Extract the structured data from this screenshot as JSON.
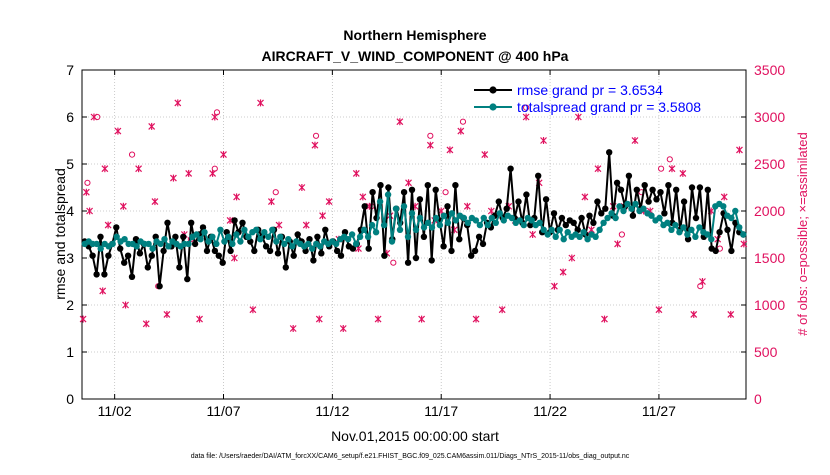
{
  "chart_data": {
    "type": "line",
    "title": "Northern Hemisphere",
    "subtitle": "AIRCRAFT_V_WIND_COMPONENT @ 400 hPa",
    "xlabel": "Nov.01,2015 00:00:00 start",
    "ylabel": "rmse and totalspread",
    "y2label": "# of obs: o=possible; ×=assimilated",
    "footer": "data file: /Users/raeder/DAI/ATM_forcXX/CAM6_setup/f.e21.FHIST_BGC.f09_025.CAM6assim.011/Diags_NTrS_2015-11/obs_diag_output.nc",
    "xlim": [
      0.5,
      31.0
    ],
    "ylim": [
      0,
      7
    ],
    "y2lim": [
      0,
      3500
    ],
    "x_ticks": [
      2,
      7,
      12,
      17,
      22,
      27
    ],
    "x_tick_labels": [
      "11/02",
      "11/07",
      "11/12",
      "11/17",
      "11/22",
      "11/27"
    ],
    "y_ticks": [
      0,
      1,
      2,
      3,
      4,
      5,
      6,
      7
    ],
    "y2_ticks": [
      0,
      500,
      1000,
      1500,
      2000,
      2500,
      3000,
      3500
    ],
    "grid": true,
    "legend_position": "top-right",
    "colors": {
      "rmse": "#000000",
      "spread": "#008080",
      "obs": "#e0115f"
    },
    "series": [
      {
        "name": "rmse grand pr = 3.6534",
        "axis": "left",
        "values": [
          3.35,
          3.25,
          3.05,
          2.65,
          3.45,
          2.65,
          3.05,
          3.3,
          3.65,
          3.2,
          2.9,
          3.05,
          2.6,
          3.4,
          3.1,
          3.3,
          2.8,
          3.05,
          3.45,
          2.4,
          3.15,
          3.75,
          3.25,
          3.45,
          2.8,
          3.45,
          2.55,
          3.75,
          3.3,
          3.5,
          3.65,
          3.15,
          3.45,
          3.15,
          3.05,
          2.9,
          3.55,
          3.15,
          3.8,
          3.55,
          3.75,
          3.45,
          3.35,
          3.15,
          3.6,
          3.45,
          3.25,
          3.15,
          3.6,
          3.1,
          3.45,
          2.8,
          3.35,
          3.05,
          3.5,
          3.35,
          3.15,
          3.4,
          2.95,
          3.45,
          3.1,
          3.6,
          3.25,
          3.35,
          3.15,
          3.05,
          3.55,
          3.25,
          3.2,
          3.3,
          3.6,
          4.1,
          3.2,
          4.4,
          3.85,
          4.55,
          3.05,
          4.5,
          3.4,
          4.05,
          3.75,
          4.4,
          2.9,
          4.45,
          3.0,
          4.25,
          3.45,
          4.55,
          2.95,
          4.45,
          3.8,
          3.25,
          4.1,
          3.15,
          4.55,
          3.4,
          3.85,
          3.7,
          3.05,
          3.15,
          3.45,
          3.3,
          3.75,
          3.65,
          3.9,
          4.2,
          3.85,
          4.05,
          4.9,
          3.85,
          4.2,
          3.75,
          4.35,
          3.7,
          3.85,
          4.75,
          3.55,
          4.25,
          3.55,
          3.95,
          3.6,
          3.85,
          3.7,
          3.8,
          3.75,
          3.6,
          3.85,
          3.5,
          3.9,
          3.75,
          4.2,
          3.95,
          4.05,
          5.25,
          3.9,
          4.6,
          4.45,
          4.1,
          4.75,
          3.9,
          4.45,
          4.05,
          4.55,
          4.2,
          4.45,
          4.25,
          4.4,
          3.95,
          4.55,
          3.75,
          4.45,
          3.6,
          4.2,
          3.4,
          4.5,
          3.85,
          4.5,
          3.45,
          4.45,
          3.2,
          3.15,
          3.55,
          3.95,
          3.6,
          3.15,
          3.75,
          3.55,
          3.5
        ]
      },
      {
        "name": "totalspread grand pr = 3.5808",
        "axis": "left",
        "values": [
          3.3,
          3.35,
          3.3,
          3.3,
          3.2,
          3.3,
          3.25,
          3.3,
          3.45,
          3.35,
          3.4,
          3.3,
          3.3,
          3.25,
          3.35,
          3.3,
          3.3,
          3.2,
          3.35,
          3.3,
          3.4,
          3.25,
          3.35,
          3.3,
          3.25,
          3.3,
          3.3,
          3.45,
          3.5,
          3.4,
          3.55,
          3.35,
          3.45,
          3.3,
          3.6,
          3.35,
          3.45,
          3.3,
          3.5,
          3.35,
          3.6,
          3.45,
          3.55,
          3.6,
          3.4,
          3.55,
          3.45,
          3.6,
          3.35,
          3.45,
          3.3,
          3.4,
          3.25,
          3.35,
          3.3,
          3.25,
          3.3,
          3.2,
          3.3,
          3.25,
          3.35,
          3.3,
          3.35,
          3.3,
          3.4,
          3.45,
          3.4,
          3.5,
          3.3,
          3.45,
          3.6,
          3.45,
          3.7,
          3.55,
          4.2,
          3.7,
          4.35,
          3.35,
          4.05,
          3.6,
          4.1,
          3.45,
          3.95,
          3.6,
          3.85,
          3.65,
          3.75,
          3.65,
          3.85,
          3.7,
          3.9,
          3.75,
          3.95,
          3.8,
          3.9,
          3.85,
          3.75,
          3.85,
          3.8,
          3.7,
          3.85,
          3.7,
          3.85,
          3.75,
          3.95,
          3.8,
          3.9,
          3.85,
          3.75,
          3.8,
          3.7,
          3.85,
          3.8,
          3.7,
          3.75,
          3.6,
          3.5,
          3.6,
          3.45,
          3.6,
          3.4,
          3.55,
          3.45,
          3.5,
          3.45,
          3.55,
          3.4,
          3.5,
          3.45,
          3.6,
          3.75,
          3.85,
          3.95,
          3.85,
          4.1,
          4.0,
          4.15,
          4.05,
          4.15,
          4.0,
          4.05,
          3.95,
          3.9,
          3.8,
          3.85,
          3.7,
          3.75,
          3.6,
          3.7,
          3.55,
          3.65,
          3.5,
          3.6,
          3.45,
          3.65,
          3.55,
          3.5,
          3.4,
          4.1,
          4.15,
          4.1,
          3.9,
          3.85,
          4.0,
          3.65,
          3.5
        ]
      }
    ],
    "obs_possible": [
      {
        "x": 0.75,
        "y": 2300
      },
      {
        "x": 1.2,
        "y": 3000
      },
      {
        "x": 2.8,
        "y": 2600
      },
      {
        "x": 4.0,
        "y": 1200
      },
      {
        "x": 5.5,
        "y": 1700
      },
      {
        "x": 6.6,
        "y": 2450
      },
      {
        "x": 6.7,
        "y": 3050
      },
      {
        "x": 9.4,
        "y": 2200
      },
      {
        "x": 11.25,
        "y": 2800
      },
      {
        "x": 13.8,
        "y": 2050
      },
      {
        "x": 14.8,
        "y": 1450
      },
      {
        "x": 16.5,
        "y": 2800
      },
      {
        "x": 17.2,
        "y": 2200
      },
      {
        "x": 18.0,
        "y": 2950
      },
      {
        "x": 20.9,
        "y": 3100
      },
      {
        "x": 25.3,
        "y": 1750
      },
      {
        "x": 26.2,
        "y": 2200
      },
      {
        "x": 27.1,
        "y": 2450
      },
      {
        "x": 27.5,
        "y": 2550
      },
      {
        "x": 28.9,
        "y": 1200
      },
      {
        "x": 29.8,
        "y": 1600
      }
    ],
    "obs_assimilated": [
      {
        "x": 0.55,
        "y": 850
      },
      {
        "x": 0.7,
        "y": 2200
      },
      {
        "x": 0.85,
        "y": 2000
      },
      {
        "x": 1.05,
        "y": 3000
      },
      {
        "x": 1.45,
        "y": 1150
      },
      {
        "x": 1.55,
        "y": 2450
      },
      {
        "x": 1.7,
        "y": 1850
      },
      {
        "x": 2.15,
        "y": 2850
      },
      {
        "x": 2.4,
        "y": 2050
      },
      {
        "x": 2.5,
        "y": 1000
      },
      {
        "x": 3.1,
        "y": 2450
      },
      {
        "x": 3.45,
        "y": 800
      },
      {
        "x": 3.7,
        "y": 2900
      },
      {
        "x": 3.85,
        "y": 2100
      },
      {
        "x": 4.4,
        "y": 900
      },
      {
        "x": 4.7,
        "y": 2350
      },
      {
        "x": 4.9,
        "y": 3150
      },
      {
        "x": 5.2,
        "y": 1750
      },
      {
        "x": 5.4,
        "y": 2400
      },
      {
        "x": 5.9,
        "y": 850
      },
      {
        "x": 6.5,
        "y": 2400
      },
      {
        "x": 6.6,
        "y": 3000
      },
      {
        "x": 7.0,
        "y": 2600
      },
      {
        "x": 7.3,
        "y": 1900
      },
      {
        "x": 7.5,
        "y": 1500
      },
      {
        "x": 7.6,
        "y": 2150
      },
      {
        "x": 8.35,
        "y": 950
      },
      {
        "x": 8.7,
        "y": 3150
      },
      {
        "x": 9.2,
        "y": 2100
      },
      {
        "x": 9.55,
        "y": 1850
      },
      {
        "x": 10.2,
        "y": 750
      },
      {
        "x": 10.6,
        "y": 2250
      },
      {
        "x": 10.8,
        "y": 1850
      },
      {
        "x": 11.2,
        "y": 2700
      },
      {
        "x": 11.4,
        "y": 850
      },
      {
        "x": 11.55,
        "y": 1950
      },
      {
        "x": 11.85,
        "y": 2100
      },
      {
        "x": 12.3,
        "y": 1700
      },
      {
        "x": 12.5,
        "y": 750
      },
      {
        "x": 13.1,
        "y": 2400
      },
      {
        "x": 13.2,
        "y": 1600
      },
      {
        "x": 13.4,
        "y": 2150
      },
      {
        "x": 13.7,
        "y": 2050
      },
      {
        "x": 14.1,
        "y": 850
      },
      {
        "x": 14.5,
        "y": 1550
      },
      {
        "x": 14.65,
        "y": 1950
      },
      {
        "x": 15.1,
        "y": 2950
      },
      {
        "x": 15.5,
        "y": 2300
      },
      {
        "x": 15.8,
        "y": 2050
      },
      {
        "x": 16.1,
        "y": 850
      },
      {
        "x": 16.5,
        "y": 2700
      },
      {
        "x": 16.7,
        "y": 1900
      },
      {
        "x": 17.0,
        "y": 2000
      },
      {
        "x": 17.4,
        "y": 2650
      },
      {
        "x": 17.6,
        "y": 1800
      },
      {
        "x": 17.9,
        "y": 2850
      },
      {
        "x": 18.2,
        "y": 2050
      },
      {
        "x": 18.6,
        "y": 850
      },
      {
        "x": 19.0,
        "y": 2600
      },
      {
        "x": 19.3,
        "y": 2000
      },
      {
        "x": 19.8,
        "y": 950
      },
      {
        "x": 20.1,
        "y": 2050
      },
      {
        "x": 20.4,
        "y": 1900
      },
      {
        "x": 20.9,
        "y": 3000
      },
      {
        "x": 21.2,
        "y": 1750
      },
      {
        "x": 21.5,
        "y": 2300
      },
      {
        "x": 21.7,
        "y": 2750
      },
      {
        "x": 22.2,
        "y": 1200
      },
      {
        "x": 22.6,
        "y": 1350
      },
      {
        "x": 23.0,
        "y": 1500
      },
      {
        "x": 23.3,
        "y": 3000
      },
      {
        "x": 23.6,
        "y": 2150
      },
      {
        "x": 23.9,
        "y": 1800
      },
      {
        "x": 24.2,
        "y": 2450
      },
      {
        "x": 24.5,
        "y": 850
      },
      {
        "x": 24.9,
        "y": 2050
      },
      {
        "x": 25.1,
        "y": 1650
      },
      {
        "x": 25.4,
        "y": 2050
      },
      {
        "x": 25.9,
        "y": 2750
      },
      {
        "x": 26.3,
        "y": 2000
      },
      {
        "x": 26.6,
        "y": 2000
      },
      {
        "x": 27.0,
        "y": 950
      },
      {
        "x": 27.6,
        "y": 2450
      },
      {
        "x": 28.1,
        "y": 2400
      },
      {
        "x": 28.6,
        "y": 900
      },
      {
        "x": 29.0,
        "y": 1250
      },
      {
        "x": 29.4,
        "y": 2000
      },
      {
        "x": 29.7,
        "y": 1700
      },
      {
        "x": 30.0,
        "y": 2150
      },
      {
        "x": 30.3,
        "y": 900
      },
      {
        "x": 30.7,
        "y": 2650
      },
      {
        "x": 30.9,
        "y": 1650
      }
    ]
  }
}
